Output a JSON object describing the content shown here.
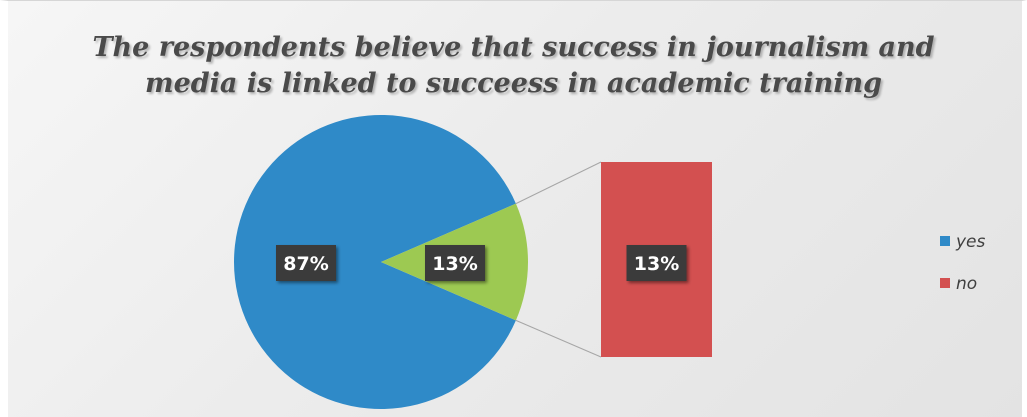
{
  "chart_data": {
    "type": "pie",
    "subtype": "pie-of-pie (bar of pie)",
    "title": "The respondents believe that success in journalism and media is linked to succeess in academic training",
    "title_lines": [
      "The respondents believe that success in journalism and",
      "media is linked to succeess in academic training"
    ],
    "categories": [
      "yes",
      "no"
    ],
    "values": [
      87,
      13
    ],
    "value_labels": [
      "87%",
      "13%"
    ],
    "breakout_label": "13%",
    "legend_position": "right",
    "colors": {
      "yes": "#2f8ac8",
      "no": "#d35050",
      "other_slice": "#9dc952",
      "label_box": "#3a3a3a"
    }
  }
}
